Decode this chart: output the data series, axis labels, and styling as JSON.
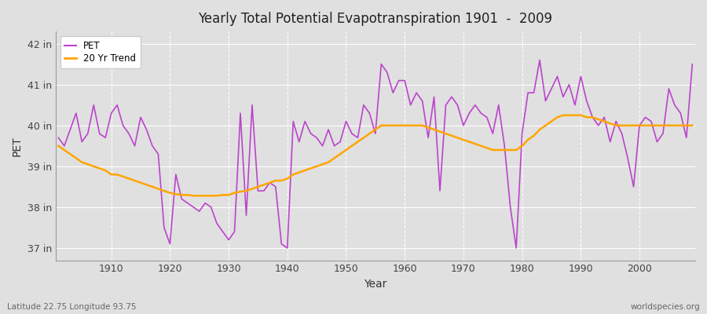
{
  "title": "Yearly Total Potential Evapotranspiration 1901  -  2009",
  "xlabel": "Year",
  "ylabel": "PET",
  "subtitle_left": "Latitude 22.75 Longitude 93.75",
  "subtitle_right": "worldspecies.org",
  "ylim": [
    36.7,
    42.3
  ],
  "xlim": [
    1900.5,
    2009.5
  ],
  "yticks": [
    37,
    38,
    39,
    40,
    41,
    42
  ],
  "ytick_labels": [
    "37 in",
    "38 in",
    "39 in",
    "40 in",
    "41 in",
    "42 in"
  ],
  "xticks": [
    1910,
    1920,
    1930,
    1940,
    1950,
    1960,
    1970,
    1980,
    1990,
    2000
  ],
  "pet_color": "#BB44CC",
  "trend_color": "#FFA500",
  "fig_bg_color": "#E0E0E0",
  "plot_bg_color": "#E0E0E0",
  "legend_pet": "PET",
  "legend_trend": "20 Yr Trend",
  "years": [
    1901,
    1902,
    1903,
    1904,
    1905,
    1906,
    1907,
    1908,
    1909,
    1910,
    1911,
    1912,
    1913,
    1914,
    1915,
    1916,
    1917,
    1918,
    1919,
    1920,
    1921,
    1922,
    1923,
    1924,
    1925,
    1926,
    1927,
    1928,
    1929,
    1930,
    1931,
    1932,
    1933,
    1934,
    1935,
    1936,
    1937,
    1938,
    1939,
    1940,
    1941,
    1942,
    1943,
    1944,
    1945,
    1946,
    1947,
    1948,
    1949,
    1950,
    1951,
    1952,
    1953,
    1954,
    1955,
    1956,
    1957,
    1958,
    1959,
    1960,
    1961,
    1962,
    1963,
    1964,
    1965,
    1966,
    1967,
    1968,
    1969,
    1970,
    1971,
    1972,
    1973,
    1974,
    1975,
    1976,
    1977,
    1978,
    1979,
    1980,
    1981,
    1982,
    1983,
    1984,
    1985,
    1986,
    1987,
    1988,
    1989,
    1990,
    1991,
    1992,
    1993,
    1994,
    1995,
    1996,
    1997,
    1998,
    1999,
    2000,
    2001,
    2002,
    2003,
    2004,
    2005,
    2006,
    2007,
    2008,
    2009
  ],
  "pet": [
    39.7,
    39.5,
    39.9,
    40.3,
    39.6,
    39.8,
    40.5,
    39.8,
    39.7,
    40.3,
    40.5,
    40.0,
    39.8,
    39.5,
    40.2,
    39.9,
    39.5,
    39.3,
    37.5,
    37.1,
    38.8,
    38.2,
    38.1,
    38.0,
    37.9,
    38.1,
    38.0,
    37.6,
    37.4,
    37.2,
    37.4,
    40.3,
    37.8,
    40.5,
    38.4,
    38.4,
    38.6,
    38.5,
    37.1,
    37.0,
    40.1,
    39.6,
    40.1,
    39.8,
    39.7,
    39.5,
    39.9,
    39.5,
    39.6,
    40.1,
    39.8,
    39.7,
    40.5,
    40.3,
    39.8,
    41.5,
    41.3,
    40.8,
    41.1,
    41.1,
    40.5,
    40.8,
    40.6,
    39.7,
    40.7,
    38.4,
    40.5,
    40.7,
    40.5,
    40.0,
    40.3,
    40.5,
    40.3,
    40.2,
    39.8,
    40.5,
    39.5,
    38.0,
    37.0,
    39.8,
    40.8,
    40.8,
    41.6,
    40.6,
    40.9,
    41.2,
    40.7,
    41.0,
    40.5,
    41.2,
    40.6,
    40.2,
    40.0,
    40.2,
    39.6,
    40.1,
    39.8,
    39.2,
    38.5,
    40.0,
    40.2,
    40.1,
    39.6,
    39.8,
    40.9,
    40.5,
    40.3,
    39.7,
    41.5
  ],
  "trend": [
    39.5,
    39.4,
    39.3,
    39.2,
    39.1,
    39.05,
    39.0,
    38.95,
    38.9,
    38.8,
    38.8,
    38.75,
    38.7,
    38.65,
    38.6,
    38.55,
    38.5,
    38.45,
    38.4,
    38.35,
    38.32,
    38.3,
    38.3,
    38.28,
    38.28,
    38.28,
    38.28,
    38.28,
    38.3,
    38.3,
    38.35,
    38.38,
    38.4,
    38.45,
    38.5,
    38.55,
    38.6,
    38.65,
    38.65,
    38.7,
    38.8,
    38.85,
    38.9,
    38.95,
    39.0,
    39.05,
    39.1,
    39.2,
    39.3,
    39.4,
    39.5,
    39.6,
    39.7,
    39.8,
    39.9,
    40.0,
    40.0,
    40.0,
    40.0,
    40.0,
    40.0,
    40.0,
    40.0,
    39.95,
    39.9,
    39.85,
    39.8,
    39.75,
    39.7,
    39.65,
    39.6,
    39.55,
    39.5,
    39.45,
    39.4,
    39.4,
    39.4,
    39.4,
    39.4,
    39.5,
    39.65,
    39.75,
    39.9,
    40.0,
    40.1,
    40.2,
    40.25,
    40.25,
    40.25,
    40.25,
    40.2,
    40.2,
    40.15,
    40.1,
    40.05,
    40.0,
    40.0,
    40.0,
    40.0,
    40.0,
    40.0,
    40.0,
    40.0,
    40.0,
    40.0,
    40.0,
    40.0,
    40.0,
    40.0
  ]
}
